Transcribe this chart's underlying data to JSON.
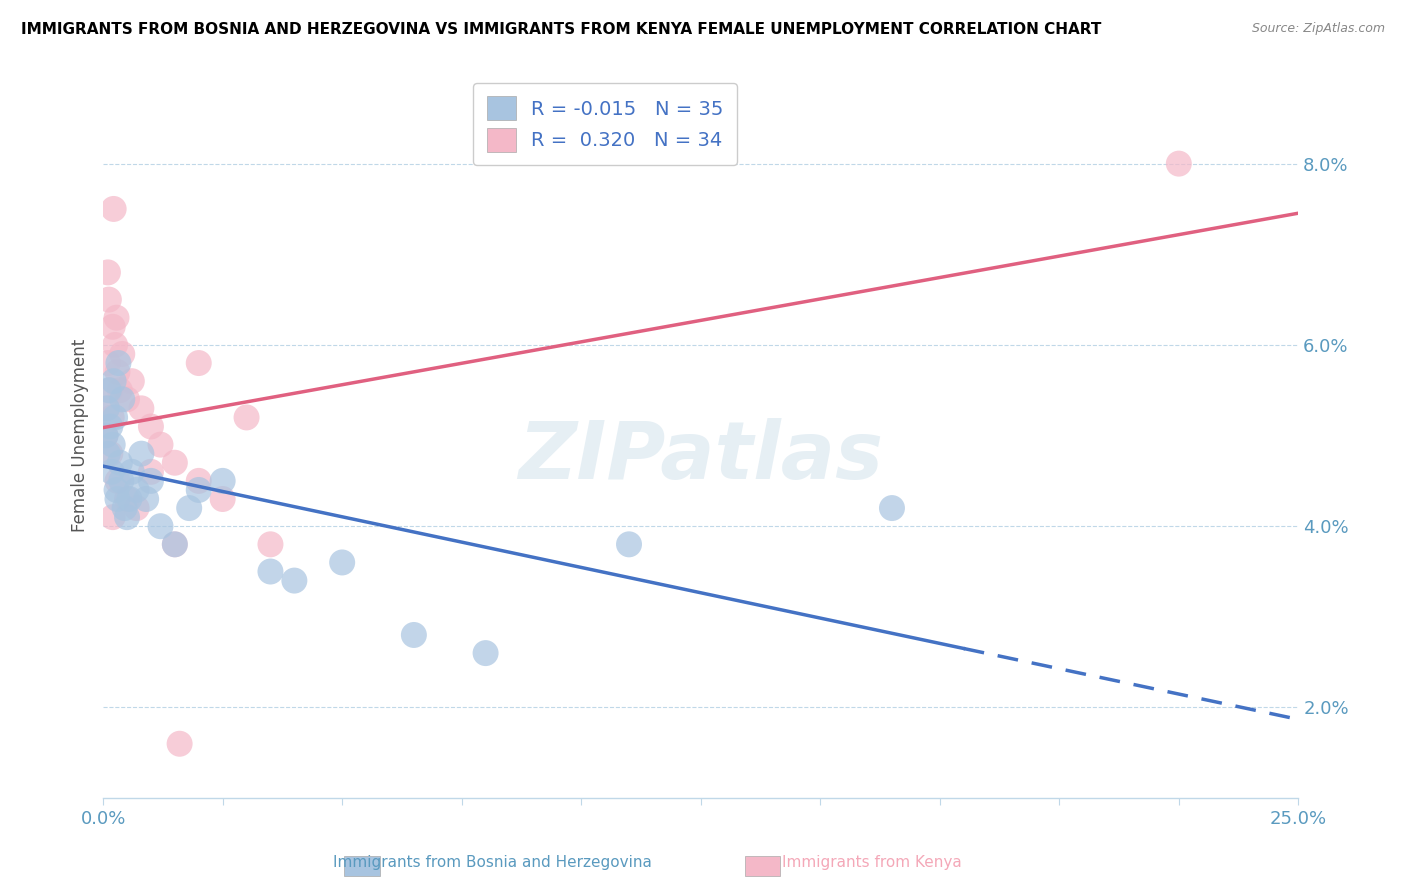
{
  "title": "IMMIGRANTS FROM BOSNIA AND HERZEGOVINA VS IMMIGRANTS FROM KENYA FEMALE UNEMPLOYMENT CORRELATION CHART",
  "source": "Source: ZipAtlas.com",
  "xlabel_bosnia": "Immigrants from Bosnia and Herzegovina",
  "xlabel_kenya": "Immigrants from Kenya",
  "ylabel": "Female Unemployment",
  "xlim": [
    0.0,
    25.0
  ],
  "ylim": [
    1.0,
    9.0
  ],
  "xticks": [
    0.0,
    2.5,
    5.0,
    7.5,
    10.0,
    12.5,
    15.0,
    17.5,
    20.0,
    22.5,
    25.0
  ],
  "xtick_labels_shown": [
    "0.0%",
    "",
    "",
    "",
    "",
    "",
    "",
    "",
    "",
    "",
    "25.0%"
  ],
  "yticks": [
    2.0,
    4.0,
    6.0,
    8.0
  ],
  "ytick_labels": [
    "2.0%",
    "4.0%",
    "6.0%",
    "8.0%"
  ],
  "legend_R_bosnia": "-0.015",
  "legend_N_bosnia": "35",
  "legend_R_kenya": "0.320",
  "legend_N_kenya": "34",
  "color_bosnia": "#a8c4e0",
  "color_kenya": "#f4b8c8",
  "line_color_bosnia": "#4472c4",
  "line_color_kenya": "#e06080",
  "watermark": "ZIPatlas",
  "bosnia_x": [
    0.05,
    0.08,
    0.1,
    0.12,
    0.15,
    0.18,
    0.2,
    0.22,
    0.25,
    0.28,
    0.3,
    0.32,
    0.35,
    0.38,
    0.4,
    0.45,
    0.5,
    0.55,
    0.6,
    0.7,
    0.8,
    0.9,
    1.0,
    1.2,
    1.5,
    1.8,
    2.0,
    2.5,
    3.5,
    4.0,
    5.0,
    6.5,
    8.0,
    11.0,
    16.5
  ],
  "bosnia_y": [
    5.0,
    5.3,
    4.8,
    5.5,
    5.1,
    4.6,
    4.9,
    5.6,
    5.2,
    4.4,
    4.3,
    5.8,
    4.7,
    4.5,
    5.4,
    4.2,
    4.1,
    4.3,
    4.6,
    4.4,
    4.8,
    4.3,
    4.5,
    4.0,
    3.8,
    4.2,
    4.4,
    4.5,
    3.5,
    3.4,
    3.6,
    2.8,
    2.6,
    3.8,
    4.2
  ],
  "kenya_x": [
    0.05,
    0.08,
    0.1,
    0.12,
    0.15,
    0.18,
    0.2,
    0.22,
    0.25,
    0.28,
    0.3,
    0.35,
    0.4,
    0.5,
    0.6,
    0.8,
    1.0,
    1.2,
    1.5,
    2.0,
    2.5,
    3.0,
    0.15,
    0.3,
    0.5,
    0.7,
    1.0,
    1.5,
    2.0,
    0.2,
    0.1,
    3.5,
    1.6,
    22.5
  ],
  "kenya_y": [
    5.0,
    5.3,
    5.8,
    6.5,
    5.5,
    5.2,
    6.2,
    7.5,
    6.0,
    6.3,
    5.7,
    5.5,
    5.9,
    5.4,
    5.6,
    5.3,
    5.1,
    4.9,
    4.7,
    4.5,
    4.3,
    5.2,
    4.8,
    4.5,
    4.3,
    4.2,
    4.6,
    3.8,
    5.8,
    4.1,
    6.8,
    3.8,
    1.6,
    8.0
  ]
}
